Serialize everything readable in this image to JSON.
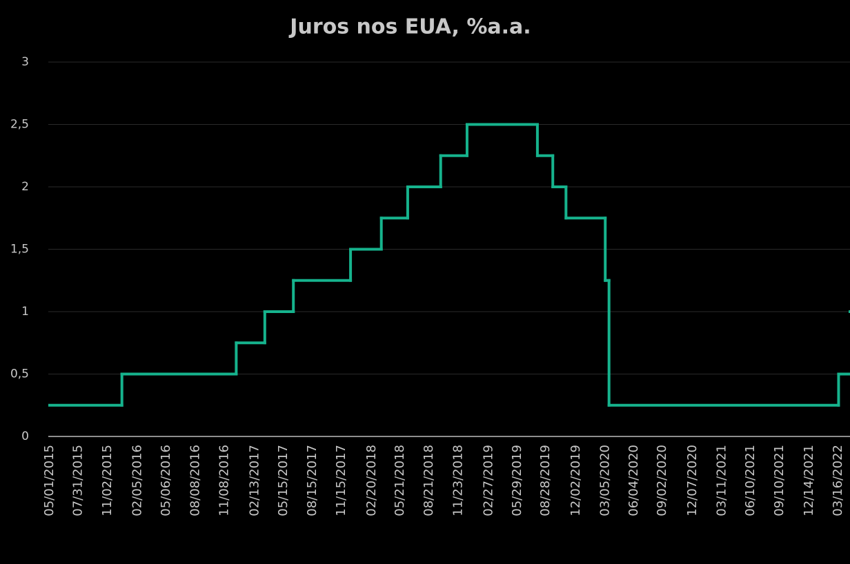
{
  "chart_data": {
    "type": "step",
    "title": "Juros nos EUA, %a.a.",
    "series": [
      {
        "color": "#16b38d",
        "x": [
          "05/01/2015",
          "12/17/2015",
          "12/15/2016",
          "03/16/2017",
          "06/15/2017",
          "12/14/2017",
          "03/22/2018",
          "06/14/2018",
          "09/27/2018",
          "12/20/2018",
          "08/01/2019",
          "09/19/2019",
          "10/31/2019",
          "03/04/2020",
          "03/16/2020",
          "03/17/2022",
          "05/05/2022"
        ],
        "values": [
          0.25,
          0.5,
          0.75,
          1,
          1.25,
          1.5,
          1.75,
          2,
          2.25,
          2.5,
          2.25,
          2,
          1.75,
          1.25,
          0.25,
          0.5,
          1
        ]
      }
    ],
    "xticks": [
      "05/01/2015",
      "07/31/2015",
      "11/02/2015",
      "02/05/2016",
      "05/06/2016",
      "08/08/2016",
      "11/08/2016",
      "02/13/2017",
      "05/15/2017",
      "08/15/2017",
      "11/15/2017",
      "02/20/2018",
      "05/21/2018",
      "08/21/2018",
      "11/23/2018",
      "02/27/2019",
      "05/29/2019",
      "08/28/2019",
      "12/02/2019",
      "03/05/2020",
      "06/04/2020",
      "09/02/2020",
      "12/07/2020",
      "03/11/2021",
      "06/10/2021",
      "09/10/2021",
      "12/14/2021",
      "03/16/2022"
    ],
    "ylim": [
      0,
      3
    ],
    "yticks": [
      0,
      {
        "value": 0.5,
        "label": "0,5"
      },
      1,
      {
        "value": 1.5,
        "label": "1,5"
      },
      2,
      {
        "value": 2.5,
        "label": "2,5"
      },
      3
    ],
    "grid": true
  }
}
